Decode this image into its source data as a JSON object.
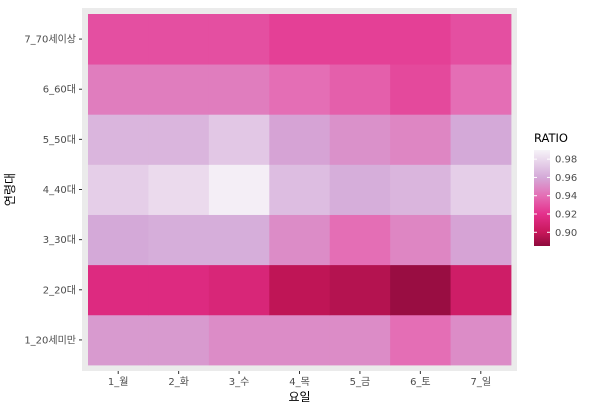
{
  "chart_data": {
    "type": "heatmap",
    "x": [
      "1_월",
      "2_화",
      "3_수",
      "4_목",
      "5_금",
      "6_토",
      "7_일"
    ],
    "y": [
      "1_20세미만",
      "2_20대",
      "3_30대",
      "4_40대",
      "5_50대",
      "6_60대",
      "7_70세이상"
    ],
    "values": [
      [
        0.955,
        0.955,
        0.95,
        0.95,
        0.95,
        0.94,
        0.95
      ],
      [
        0.915,
        0.915,
        0.912,
        0.898,
        0.895,
        0.888,
        0.905
      ],
      [
        0.96,
        0.962,
        0.962,
        0.95,
        0.94,
        0.948,
        0.958
      ],
      [
        0.975,
        0.98,
        0.988,
        0.968,
        0.962,
        0.965,
        0.975
      ],
      [
        0.965,
        0.965,
        0.972,
        0.958,
        0.952,
        0.948,
        0.96
      ],
      [
        0.945,
        0.945,
        0.945,
        0.94,
        0.935,
        0.928,
        0.94
      ],
      [
        0.93,
        0.93,
        0.93,
        0.925,
        0.925,
        0.925,
        0.93
      ]
    ],
    "xlabel": "요일",
    "ylabel": "연령대",
    "legend": {
      "title": "RATIO",
      "position": "right",
      "ticks": [
        0.9,
        0.92,
        0.94,
        0.96,
        0.98
      ],
      "tick_labels": [
        "0.90",
        "0.92",
        "0.94",
        "0.96",
        "0.98"
      ]
    },
    "color_range": [
      0.885,
      0.99
    ],
    "color_scale": [
      {
        "value": 0.885,
        "color": "#8e0a3c"
      },
      {
        "value": 0.9,
        "color": "#c7175a"
      },
      {
        "value": 0.92,
        "color": "#e4308c"
      },
      {
        "value": 0.94,
        "color": "#e46eb5"
      },
      {
        "value": 0.96,
        "color": "#d4a9d8"
      },
      {
        "value": 0.99,
        "color": "#f6f3f8"
      }
    ],
    "panel_background": "#ebebeb",
    "grid": true
  }
}
